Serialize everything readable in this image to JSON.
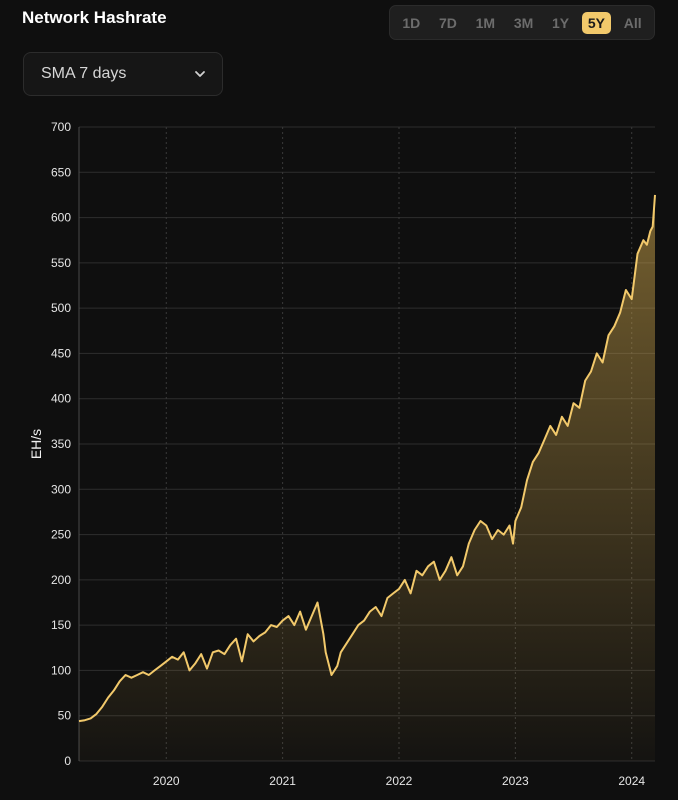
{
  "header": {
    "title": "Network Hashrate",
    "ranges": [
      "1D",
      "7D",
      "1M",
      "3M",
      "1Y",
      "5Y",
      "All"
    ],
    "active_range": "5Y"
  },
  "smoothing": {
    "selected": "SMA 7 days"
  },
  "colors": {
    "line": "#f2c96b",
    "accent": "#f2c96b",
    "background": "#0f0f0f",
    "grid": "#2e2e2e"
  },
  "chart_data": {
    "type": "area",
    "title": "",
    "xlabel": "",
    "ylabel": "EH/s",
    "grid": true,
    "ylim": [
      0,
      700
    ],
    "xlim": [
      2019.25,
      2024.2
    ],
    "yticks": [
      "0",
      "50",
      "100",
      "150",
      "200",
      "250",
      "300",
      "350",
      "400",
      "450",
      "500",
      "550",
      "600",
      "650",
      "700"
    ],
    "xticks": [
      "2020",
      "2021",
      "2022",
      "2023",
      "2024"
    ],
    "series": [
      {
        "x": [
          2019.25,
          2019.3,
          2019.35,
          2019.4,
          2019.45,
          2019.5,
          2019.55,
          2019.6,
          2019.65,
          2019.7,
          2019.75,
          2019.8,
          2019.85,
          2019.9,
          2019.95,
          2020.0,
          2020.05,
          2020.1,
          2020.15,
          2020.2,
          2020.25,
          2020.3,
          2020.35,
          2020.4,
          2020.45,
          2020.5,
          2020.55,
          2020.6,
          2020.65,
          2020.7,
          2020.75,
          2020.8,
          2020.85,
          2020.9,
          2020.95,
          2021.0,
          2021.05,
          2021.1,
          2021.15,
          2021.2,
          2021.25,
          2021.3,
          2021.35,
          2021.37,
          2021.42,
          2021.47,
          2021.5,
          2021.55,
          2021.6,
          2021.65,
          2021.7,
          2021.75,
          2021.8,
          2021.85,
          2021.9,
          2021.95,
          2022.0,
          2022.05,
          2022.1,
          2022.15,
          2022.2,
          2022.25,
          2022.3,
          2022.35,
          2022.4,
          2022.45,
          2022.5,
          2022.55,
          2022.6,
          2022.65,
          2022.7,
          2022.75,
          2022.8,
          2022.85,
          2022.9,
          2022.95,
          2022.98,
          2023.0,
          2023.05,
          2023.1,
          2023.15,
          2023.2,
          2023.25,
          2023.3,
          2023.35,
          2023.4,
          2023.45,
          2023.5,
          2023.55,
          2023.6,
          2023.65,
          2023.7,
          2023.75,
          2023.8,
          2023.85,
          2023.9,
          2023.95,
          2024.0,
          2024.05,
          2024.1,
          2024.13,
          2024.16,
          2024.18,
          2024.2
        ],
        "y": [
          44,
          45,
          47,
          52,
          60,
          70,
          78,
          88,
          95,
          92,
          95,
          98,
          95,
          100,
          105,
          110,
          115,
          112,
          120,
          100,
          108,
          118,
          102,
          120,
          122,
          118,
          128,
          135,
          110,
          140,
          132,
          138,
          142,
          150,
          148,
          155,
          160,
          150,
          165,
          145,
          160,
          175,
          140,
          120,
          95,
          105,
          120,
          130,
          140,
          150,
          155,
          165,
          170,
          160,
          180,
          185,
          190,
          200,
          185,
          210,
          205,
          215,
          220,
          200,
          210,
          225,
          205,
          215,
          240,
          255,
          265,
          260,
          245,
          255,
          250,
          260,
          240,
          265,
          280,
          310,
          330,
          340,
          355,
          370,
          360,
          380,
          370,
          395,
          390,
          420,
          430,
          450,
          440,
          470,
          480,
          495,
          520,
          510,
          560,
          575,
          570,
          585,
          590,
          625
        ],
        "color": "#f2c96b"
      }
    ]
  }
}
